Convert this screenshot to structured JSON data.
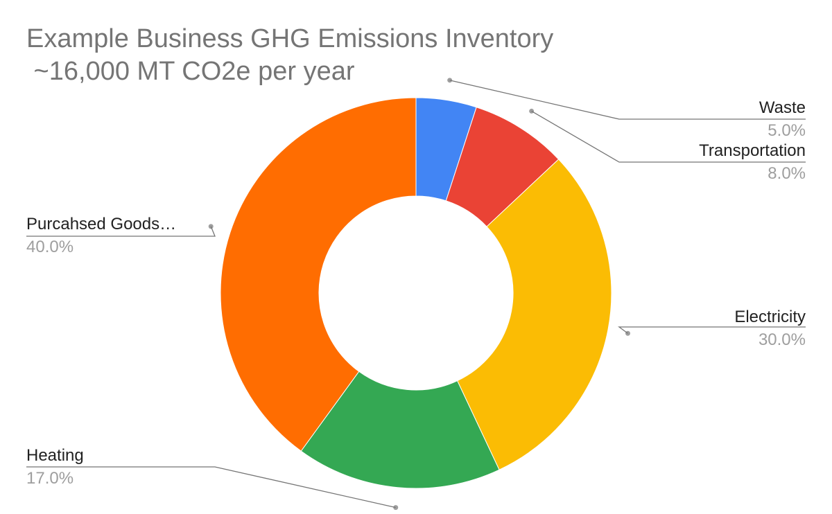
{
  "chart_data": {
    "type": "pie",
    "donut": true,
    "title": "Example Business GHG Emissions Inventory",
    "subtitle": " ~16,000 MT CO2e per year",
    "legend": "none",
    "slices": [
      {
        "label": "Waste",
        "value": 5.0,
        "pct_label": "5.0%",
        "color": "#4285f4",
        "side": "right"
      },
      {
        "label": "Transportation",
        "value": 8.0,
        "pct_label": "8.0%",
        "color": "#ea4335",
        "side": "right"
      },
      {
        "label": "Electricity",
        "value": 30.0,
        "pct_label": "30.0%",
        "color": "#fbbc04",
        "side": "right"
      },
      {
        "label": "Heating",
        "value": 17.0,
        "pct_label": "17.0%",
        "color": "#34a853",
        "side": "left"
      },
      {
        "label": "Purcahsed Goods…",
        "value": 40.0,
        "pct_label": "40.0%",
        "color": "#ff6d01",
        "side": "left"
      }
    ]
  }
}
